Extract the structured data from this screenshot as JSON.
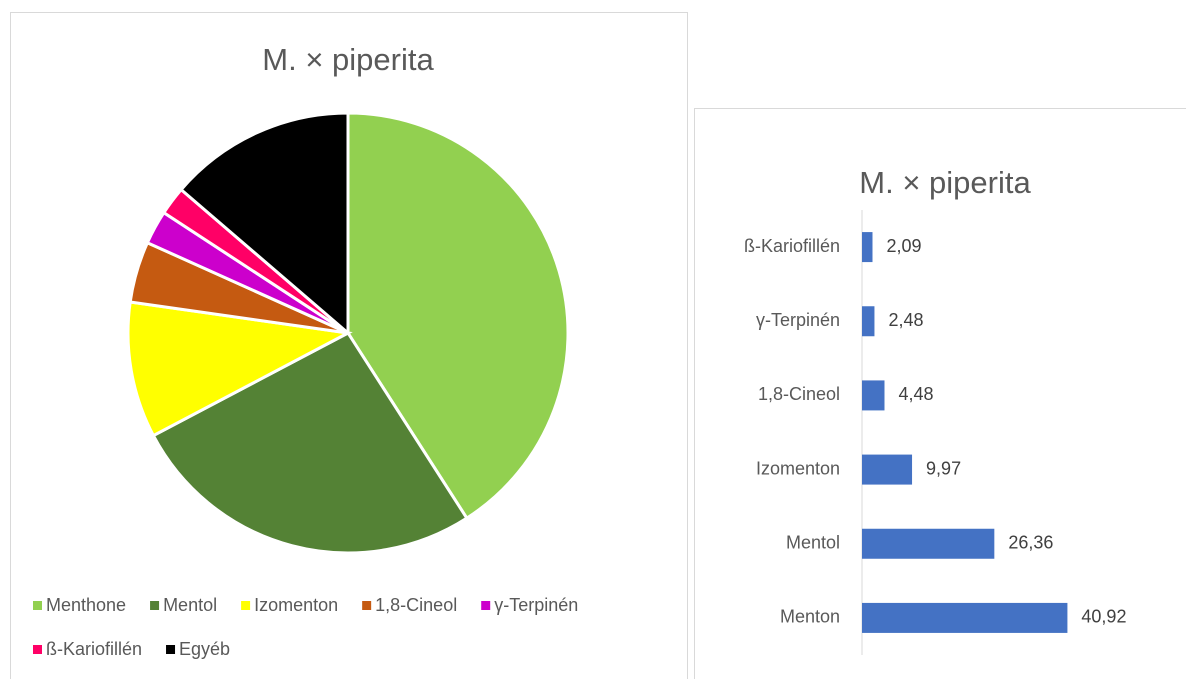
{
  "chart_data": [
    {
      "type": "pie",
      "title": "M. × piperita",
      "categories": [
        "Menthone",
        "Mentol",
        "Izomenton",
        "1,8-Cineol",
        "γ-Terpinén",
        "ß-Kariofillén",
        "Egyéb"
      ],
      "values": [
        40.92,
        26.36,
        9.97,
        4.48,
        2.48,
        2.09,
        13.7
      ],
      "colors": [
        "#92d050",
        "#548235",
        "#ffff00",
        "#c55a11",
        "#cc00cc",
        "#ff0066",
        "#000000"
      ],
      "legend": "bottom"
    },
    {
      "type": "hbar",
      "title": "M. × piperita",
      "categories": [
        "Menton",
        "Mentol",
        "Izomenton",
        "1,8-Cineol",
        "γ-Terpinén",
        "ß-Kariofillén"
      ],
      "values": [
        40.92,
        26.36,
        9.97,
        4.48,
        2.48,
        2.09
      ],
      "value_labels": [
        "40,92",
        "26,36",
        "9,97",
        "4,48",
        "2,48",
        "2,09"
      ],
      "color": "#4472c4",
      "xlim": [
        0,
        50
      ]
    }
  ]
}
